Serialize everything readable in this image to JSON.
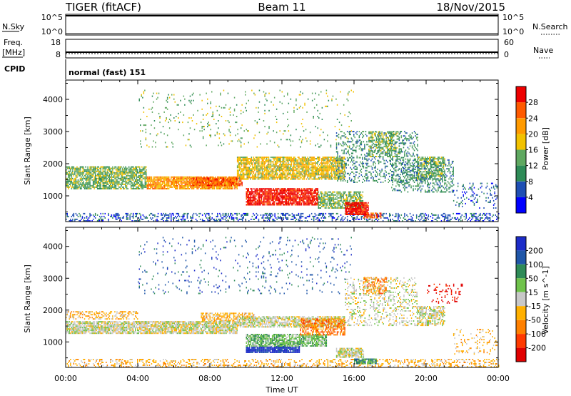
{
  "header": {
    "radar": "TIGER (fitACF)",
    "beam": "Beam 11",
    "date": "18/Nov/2015"
  },
  "sky_panel": {
    "left_label": "N.Sky",
    "right_label": "N.Search",
    "left_ticks": [
      "10^5",
      "10^0"
    ],
    "right_ticks": [
      "10^5",
      "10^0"
    ]
  },
  "freq_panel": {
    "left_label_line1": "Freq.",
    "left_label_line2": "[MHz]",
    "right_label": "Nave",
    "left_ticks": [
      "18",
      "8"
    ],
    "right_ticks": [
      "60",
      "0"
    ]
  },
  "cpid": {
    "label": "CPID",
    "value": "normal (fast) 151"
  },
  "x_axis": {
    "label": "Time UT",
    "ticks": [
      "00:00",
      "04:00",
      "08:00",
      "12:00",
      "16:00",
      "20:00",
      "00:00"
    ]
  },
  "colors": {
    "power": [
      "#0000ff",
      "#1f4fb4",
      "#2e8b57",
      "#5fa860",
      "#f2c200",
      "#ff9a00",
      "#ff5a00",
      "#ee0000"
    ],
    "velocity": [
      "#1c2cc8",
      "#1f56a8",
      "#2e8b57",
      "#6fc24b",
      "#c8c8c8",
      "#ffb000",
      "#ff8000",
      "#ff3a00",
      "#e00000"
    ]
  },
  "chart_data": [
    {
      "type": "heatmap",
      "name": "power",
      "xlabel": "Time UT",
      "ylabel": "Slant Range [km]",
      "xlim": [
        0,
        24
      ],
      "ylim": [
        200,
        4600
      ],
      "y_ticks": [
        "1000",
        "2000",
        "3000",
        "4000"
      ],
      "colorbar": {
        "label": "Power [dB]",
        "ticks": [
          "4",
          "8",
          "12",
          "16",
          "20",
          "24",
          "28"
        ]
      },
      "regions": [
        {
          "t0": 0.0,
          "t1": 24.0,
          "r0": 200,
          "r1": 450,
          "level": 1,
          "density": 0.35
        },
        {
          "t0": 0.0,
          "t1": 4.5,
          "r0": 1200,
          "r1": 1900,
          "level": 3,
          "density": 0.75
        },
        {
          "t0": 4.5,
          "t1": 9.5,
          "r0": 1200,
          "r1": 1600,
          "level": 5,
          "density": 0.85
        },
        {
          "t0": 7.0,
          "t1": 9.8,
          "r0": 1300,
          "r1": 1550,
          "level": 6,
          "density": 0.8
        },
        {
          "t0": 9.5,
          "t1": 15.5,
          "r0": 1500,
          "r1": 2200,
          "level": 4,
          "density": 0.8
        },
        {
          "t0": 10.0,
          "t1": 14.0,
          "r0": 700,
          "r1": 1200,
          "level": 7,
          "density": 0.85
        },
        {
          "t0": 14.0,
          "t1": 16.5,
          "r0": 600,
          "r1": 1100,
          "level": 3,
          "density": 0.7
        },
        {
          "t0": 15.5,
          "t1": 16.8,
          "r0": 400,
          "r1": 800,
          "level": 7,
          "density": 0.9
        },
        {
          "t0": 16.5,
          "t1": 17.5,
          "r0": 300,
          "r1": 450,
          "level": 6,
          "density": 0.7
        },
        {
          "t0": 15.0,
          "t1": 19.5,
          "r0": 1400,
          "r1": 3000,
          "level": 2,
          "density": 0.25
        },
        {
          "t0": 16.8,
          "t1": 18.5,
          "r0": 2200,
          "r1": 3000,
          "level": 3,
          "density": 0.45
        },
        {
          "t0": 19.5,
          "t1": 21.0,
          "r0": 1500,
          "r1": 2200,
          "level": 3,
          "density": 0.6
        },
        {
          "t0": 18.0,
          "t1": 21.5,
          "r0": 1100,
          "r1": 2100,
          "level": 2,
          "density": 0.3
        },
        {
          "t0": 21.5,
          "t1": 24.0,
          "r0": 600,
          "r1": 1400,
          "level": 1,
          "density": 0.15
        },
        {
          "t0": 4.0,
          "t1": 16.0,
          "r0": 2500,
          "r1": 4300,
          "level": 3,
          "density": 0.05
        }
      ]
    },
    {
      "type": "heatmap",
      "name": "velocity",
      "xlabel": "Time UT",
      "ylabel": "Slant Range [km]",
      "xlim": [
        0,
        24
      ],
      "ylim": [
        200,
        4600
      ],
      "y_ticks": [
        "1000",
        "2000",
        "3000",
        "4000"
      ],
      "colorbar": {
        "label": "Velocity [m s^-1]",
        "ticks": [
          "200",
          "100",
          "50",
          "15",
          "-15",
          "-50",
          "-100",
          "-200"
        ]
      },
      "regions": [
        {
          "t0": 0.0,
          "t1": 24.0,
          "r0": 200,
          "r1": 450,
          "level": 5,
          "density": 0.3
        },
        {
          "t0": 0.0,
          "t1": 9.5,
          "r0": 1250,
          "r1": 1650,
          "level": 4,
          "density": 0.85
        },
        {
          "t0": 0.0,
          "t1": 4.0,
          "r0": 1700,
          "r1": 1950,
          "level": 5,
          "density": 0.4
        },
        {
          "t0": 7.5,
          "t1": 10.5,
          "r0": 1650,
          "r1": 1900,
          "level": 5,
          "density": 0.6
        },
        {
          "t0": 9.5,
          "t1": 15.5,
          "r0": 1450,
          "r1": 1800,
          "level": 4,
          "density": 0.75
        },
        {
          "t0": 10.0,
          "t1": 13.0,
          "r0": 650,
          "r1": 850,
          "level": 0,
          "density": 0.9
        },
        {
          "t0": 10.0,
          "t1": 14.5,
          "r0": 850,
          "r1": 1250,
          "level": 3,
          "density": 0.8
        },
        {
          "t0": 13.0,
          "t1": 15.5,
          "r0": 1200,
          "r1": 1700,
          "level": 6,
          "density": 0.6
        },
        {
          "t0": 15.0,
          "t1": 16.5,
          "r0": 500,
          "r1": 800,
          "level": 4,
          "density": 0.8
        },
        {
          "t0": 16.0,
          "t1": 17.2,
          "r0": 300,
          "r1": 450,
          "level": 2,
          "density": 0.8
        },
        {
          "t0": 15.5,
          "t1": 19.5,
          "r0": 1500,
          "r1": 3000,
          "level": 4,
          "density": 0.25
        },
        {
          "t0": 16.5,
          "t1": 17.8,
          "r0": 2500,
          "r1": 3000,
          "level": 6,
          "density": 0.4
        },
        {
          "t0": 19.5,
          "t1": 21.0,
          "r0": 1500,
          "r1": 2100,
          "level": 4,
          "density": 0.6
        },
        {
          "t0": 20.0,
          "t1": 22.0,
          "r0": 2200,
          "r1": 2800,
          "level": 8,
          "density": 0.15
        },
        {
          "t0": 21.5,
          "t1": 24.0,
          "r0": 600,
          "r1": 1400,
          "level": 5,
          "density": 0.12
        },
        {
          "t0": 4.0,
          "t1": 16.0,
          "r0": 2500,
          "r1": 4300,
          "level": 1,
          "density": 0.05
        }
      ]
    }
  ]
}
